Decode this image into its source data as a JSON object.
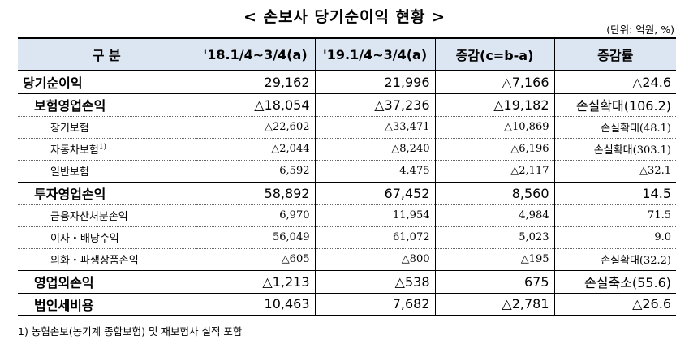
{
  "title": "< 손보사 당기순이익 현황 >",
  "unit": "(단위: 억원, %)",
  "headers": [
    "구   분",
    "'18.1/4~3/4(a)",
    "'19.1/4~3/4(a)",
    "증감(c=b-a)",
    "증감률"
  ],
  "rows": [
    {
      "label": "당기순이익",
      "a": "29,162",
      "b": "21,996",
      "c": "△7,166",
      "rate": "△24.6"
    },
    {
      "label": "보험영업손익",
      "a": "△18,054",
      "b": "△37,236",
      "c": "△19,182",
      "rate": "손실확대(106.2)"
    },
    {
      "label": "장기보험",
      "a": "△22,602",
      "b": "△33,471",
      "c": "△10,869",
      "rate": "손실확대(48.1)"
    },
    {
      "label": "자동차보험",
      "sup": "1)",
      "a": "△2,044",
      "b": "△8,240",
      "c": "△6,196",
      "rate": "손실확대(303.1)"
    },
    {
      "label": "일반보험",
      "a": "6,592",
      "b": "4,475",
      "c": "△2,117",
      "rate": "△32.1"
    },
    {
      "label": "투자영업손익",
      "a": "58,892",
      "b": "67,452",
      "c": "8,560",
      "rate": "14.5"
    },
    {
      "label": "금융자산처분손익",
      "a": "6,970",
      "b": "11,954",
      "c": "4,984",
      "rate": "71.5"
    },
    {
      "label": "이자・배당수익",
      "a": "56,049",
      "b": "61,072",
      "c": "5,023",
      "rate": "9.0"
    },
    {
      "label": "외화・파생상품손익",
      "a": "△605",
      "b": "△800",
      "c": "△195",
      "rate": "손실확대(32.2)"
    },
    {
      "label": "영업외손익",
      "a": "△1,213",
      "b": "△538",
      "c": "675",
      "rate": "손실축소(55.6)"
    },
    {
      "label": "법인세비용",
      "a": "10,463",
      "b": "7,682",
      "c": "△2,781",
      "rate": "△26.6"
    }
  ],
  "footnote": "1) 농협손보(농기계 종합보험) 및 재보험사 실적 포함"
}
